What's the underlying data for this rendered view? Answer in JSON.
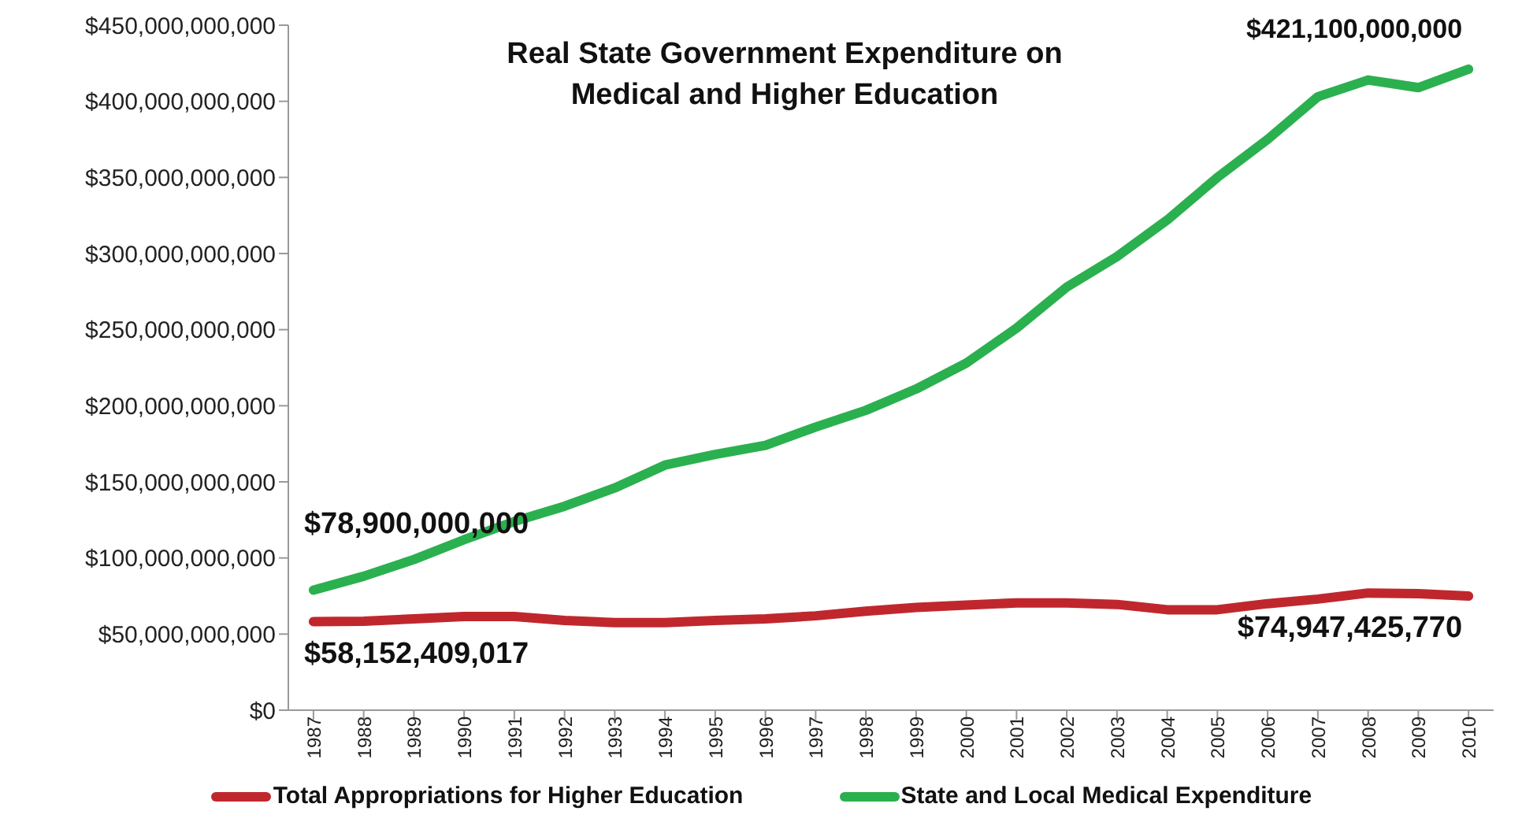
{
  "chart_data": {
    "type": "line",
    "title": "Real  State Government Expenditure on Medical and Higher Education",
    "categories": [
      "1987",
      "1988",
      "1989",
      "1990",
      "1991",
      "1992",
      "1993",
      "1994",
      "1995",
      "1996",
      "1997",
      "1998",
      "1999",
      "2000",
      "2001",
      "2002",
      "2003",
      "2004",
      "2005",
      "2006",
      "2007",
      "2008",
      "2009",
      "2010"
    ],
    "series": [
      {
        "name": "Total Appropriations for Higher Education",
        "color": "#c0272d",
        "values": [
          58152409017,
          58500000000,
          60000000000,
          61500000000,
          61500000000,
          59000000000,
          57500000000,
          57500000000,
          59000000000,
          60000000000,
          62000000000,
          65000000000,
          67500000000,
          69000000000,
          70500000000,
          70500000000,
          69500000000,
          66000000000,
          66000000000,
          70000000000,
          73000000000,
          77000000000,
          76500000000,
          74947425770
        ]
      },
      {
        "name": "State and Local Medical Expenditure",
        "color": "#2bb04f",
        "values": [
          78900000000,
          88000000000,
          99000000000,
          112000000000,
          124000000000,
          134000000000,
          146000000000,
          161000000000,
          168000000000,
          174000000000,
          186000000000,
          197000000000,
          211000000000,
          228000000000,
          251000000000,
          278000000000,
          298000000000,
          322000000000,
          350000000000,
          375000000000,
          403000000000,
          414000000000,
          409000000000,
          421100000000
        ]
      }
    ],
    "ylim": [
      0,
      450000000000
    ],
    "yticks": [
      {
        "value": 0,
        "label": "$0"
      },
      {
        "value": 50000000000,
        "label": "$50,000,000,000"
      },
      {
        "value": 100000000000,
        "label": "$100,000,000,000"
      },
      {
        "value": 150000000000,
        "label": "$150,000,000,000"
      },
      {
        "value": 200000000000,
        "label": "$200,000,000,000"
      },
      {
        "value": 250000000000,
        "label": "$250,000,000,000"
      },
      {
        "value": 300000000000,
        "label": "$300,000,000,000"
      },
      {
        "value": 350000000000,
        "label": "$350,000,000,000"
      },
      {
        "value": 400000000000,
        "label": "$400,000,000,000"
      },
      {
        "value": 450000000000,
        "label": "$450,000,000,000"
      }
    ],
    "grid": false,
    "legend": "bottom",
    "marker": "none",
    "line_style": "solid",
    "annotations": [
      {
        "text": "$78,900,000,000",
        "x": "1987",
        "y": 78900000000
      },
      {
        "text": "$58,152,409,017",
        "x": "1987",
        "y": 58152409017
      },
      {
        "text": "$421,100,000,000",
        "x": "2010",
        "y": 421100000000
      },
      {
        "text": "$74,947,425,770",
        "x": "2010",
        "y": 74947425770
      }
    ]
  }
}
